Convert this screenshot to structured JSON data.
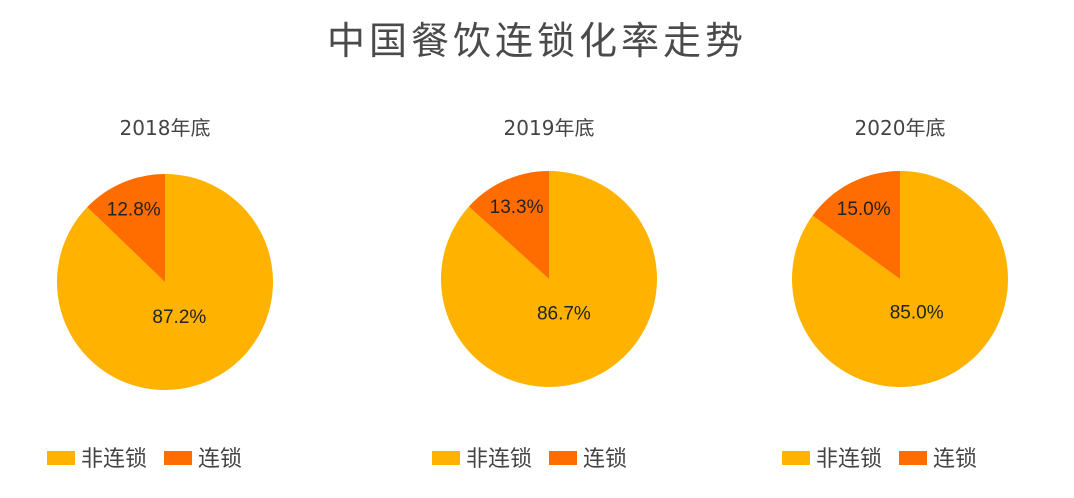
{
  "chart_data": {
    "title": "中国餐饮连锁化率走势",
    "type": "pie",
    "legend": {
      "placement": "bottom",
      "entries": [
        "非连锁",
        "连锁"
      ]
    },
    "colors": {
      "非连锁": "#FFB300",
      "连锁": "#FF6D00"
    },
    "charts": [
      {
        "subtitle": "2018年底",
        "slices": [
          {
            "name": "非连锁",
            "value": 87.2,
            "label": "87.2%"
          },
          {
            "name": "连锁",
            "value": 12.8,
            "label": "12.8%"
          }
        ]
      },
      {
        "subtitle": "2019年底",
        "slices": [
          {
            "name": "非连锁",
            "value": 86.7,
            "label": "86.7%"
          },
          {
            "name": "连锁",
            "value": 13.3,
            "label": "13.3%"
          }
        ]
      },
      {
        "subtitle": "2020年底",
        "slices": [
          {
            "name": "非连锁",
            "value": 85.0,
            "label": "85.0%"
          },
          {
            "name": "连锁",
            "value": 15.0,
            "label": "15.0%"
          }
        ]
      }
    ]
  }
}
